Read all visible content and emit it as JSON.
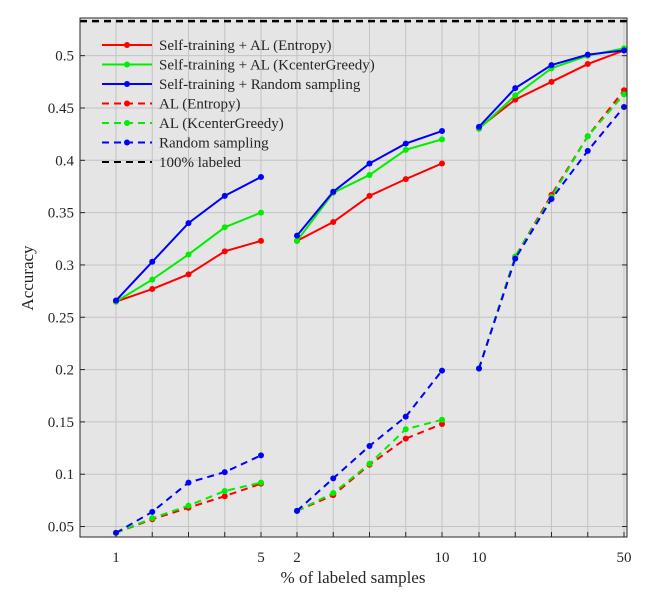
{
  "chart_data": {
    "type": "line",
    "xlabel": "% of labeled samples",
    "ylabel": "Accuracy",
    "ylim": [
      0.04,
      0.536
    ],
    "yticks": [
      0.05,
      0.1,
      0.15,
      0.2,
      0.25,
      0.3,
      0.35,
      0.4,
      0.45,
      0.5
    ],
    "ytick_labels": [
      "0.05",
      "0.1",
      "0.15",
      "0.2",
      "0.25",
      "0.3",
      "0.35",
      "0.4",
      "0.45",
      "0.5"
    ],
    "grid": true,
    "legend_position": "top-left",
    "segments": [
      {
        "x": [
          1,
          2,
          3,
          4,
          5
        ],
        "tick_labels": [
          "1",
          "",
          "",
          "",
          "5"
        ]
      },
      {
        "x": [
          2,
          4,
          6,
          8,
          10
        ],
        "tick_labels": [
          "2",
          "",
          "",
          "",
          "10"
        ]
      },
      {
        "x": [
          10,
          20,
          30,
          40,
          50
        ],
        "tick_labels": [
          "10",
          "",
          "",
          "",
          "50"
        ]
      }
    ],
    "series": [
      {
        "name": "Self-training + AL (Entropy)",
        "color": "#ff0000",
        "dashed": false,
        "values": [
          [
            0.265,
            0.277,
            0.291,
            0.313,
            0.323
          ],
          [
            0.323,
            0.341,
            0.366,
            0.382,
            0.397
          ],
          [
            0.431,
            0.458,
            0.475,
            0.492,
            0.505
          ]
        ]
      },
      {
        "name": "Self-training + AL (KcenterGreedy)",
        "color": "#00ee00",
        "dashed": false,
        "values": [
          [
            0.265,
            0.286,
            0.31,
            0.336,
            0.35
          ],
          [
            0.323,
            0.369,
            0.386,
            0.41,
            0.42
          ],
          [
            0.43,
            0.462,
            0.488,
            0.5,
            0.507
          ]
        ]
      },
      {
        "name": "Self-training + Random sampling",
        "color": "#0000ff",
        "dashed": false,
        "values": [
          [
            0.266,
            0.303,
            0.34,
            0.366,
            0.384
          ],
          [
            0.328,
            0.37,
            0.397,
            0.416,
            0.428
          ],
          [
            0.432,
            0.469,
            0.491,
            0.501,
            0.505
          ]
        ]
      },
      {
        "name": "AL (Entropy)",
        "color": "#ff0000",
        "dashed": true,
        "values": [
          [
            0.044,
            0.057,
            0.068,
            0.079,
            0.091
          ],
          [
            0.065,
            0.08,
            0.109,
            0.134,
            0.148
          ],
          [
            0.201,
            0.308,
            0.367,
            0.423,
            0.467
          ]
        ]
      },
      {
        "name": "AL (KcenterGreedy)",
        "color": "#00ee00",
        "dashed": true,
        "values": [
          [
            0.044,
            0.058,
            0.07,
            0.084,
            0.092
          ],
          [
            0.065,
            0.082,
            0.11,
            0.143,
            0.152
          ],
          [
            0.201,
            0.308,
            0.365,
            0.423,
            0.463
          ]
        ]
      },
      {
        "name": "Random sampling",
        "color": "#0000ff",
        "dashed": true,
        "values": [
          [
            0.044,
            0.064,
            0.092,
            0.102,
            0.118
          ],
          [
            0.065,
            0.096,
            0.127,
            0.155,
            0.199
          ],
          [
            0.201,
            0.306,
            0.363,
            0.409,
            0.451
          ]
        ]
      },
      {
        "name": "100% labeled",
        "color": "#000000",
        "dashed": true,
        "constant": 0.533
      }
    ]
  }
}
